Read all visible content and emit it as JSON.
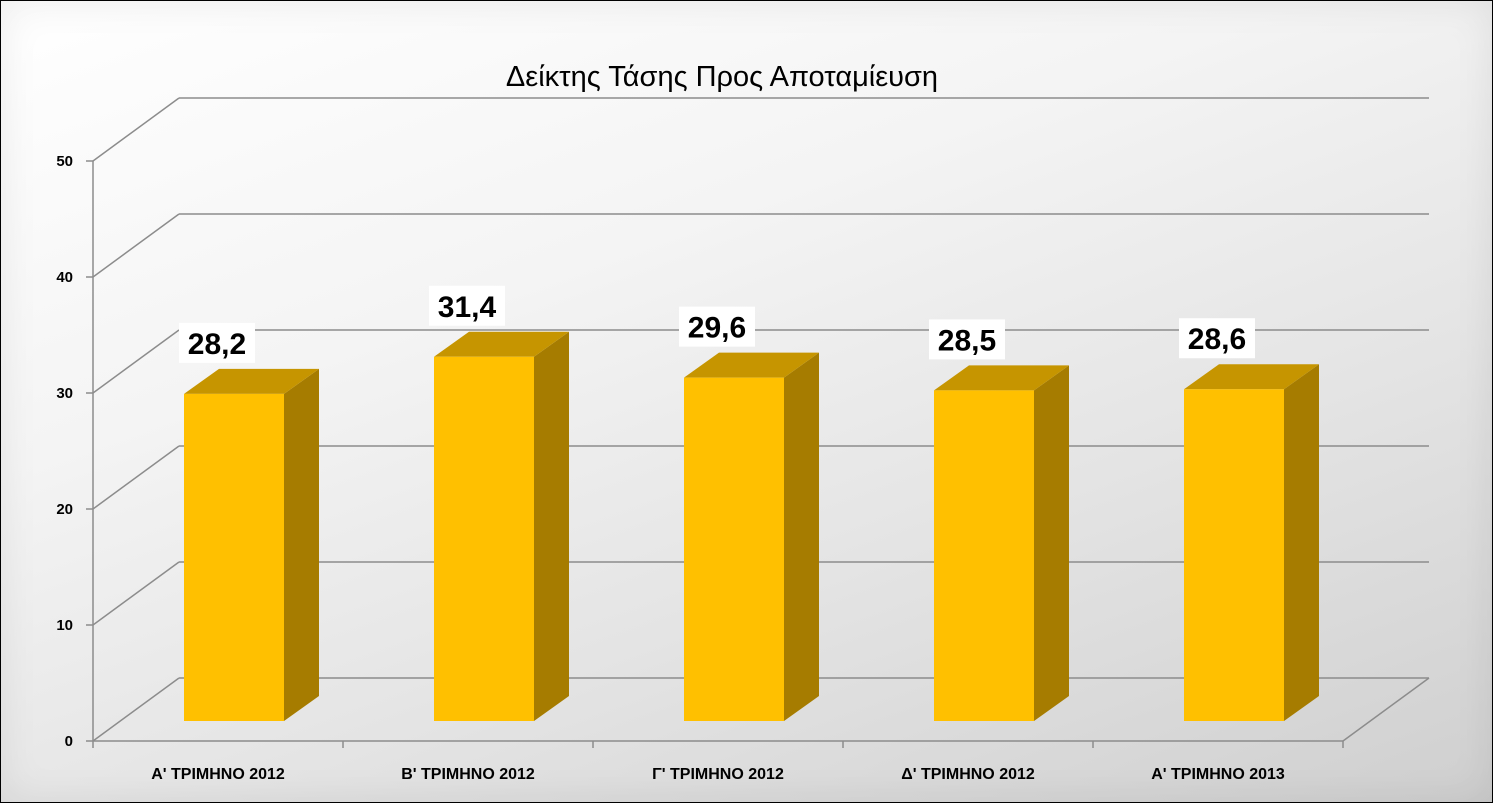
{
  "chart_data": {
    "type": "bar",
    "title": "Δείκτης Τάσης Προς Αποταμίευση",
    "categories": [
      "Α' ΤΡΙΜΗΝΟ 2012",
      "Β' ΤΡΙΜΗΝΟ 2012",
      "Γ' ΤΡΙΜΗΝΟ 2012",
      "Δ' ΤΡΙΜΗΝΟ 2012",
      "Α' ΤΡΙΜΗΝΟ 2013"
    ],
    "values": [
      28.2,
      31.4,
      29.6,
      28.5,
      28.6
    ],
    "data_labels": [
      "28,2",
      "31,4",
      "29,6",
      "28,5",
      "28,6"
    ],
    "y_ticks": [
      "0",
      "10",
      "20",
      "30",
      "40",
      "50"
    ],
    "ylim": [
      0,
      50
    ],
    "grid": true,
    "style": "3d-column",
    "colors": {
      "bar_front": "#FFC000",
      "bar_top": "#C69500",
      "bar_side": "#A67C00",
      "grid": "#8C8C8C"
    }
  }
}
